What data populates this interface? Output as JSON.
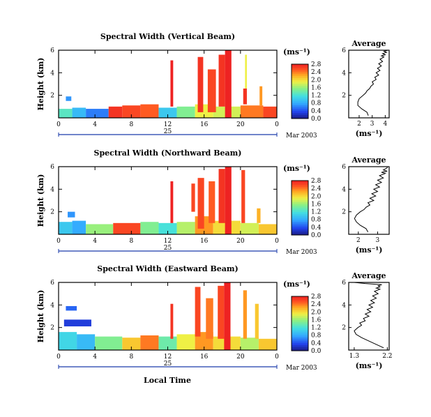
{
  "figure": {
    "xlabel": "Local Time"
  },
  "chart_data": [
    {
      "type": "heatmap",
      "title": "Spectral Width (Vertical Beam)",
      "ylabel": "Height (km)",
      "xticks": [
        "0",
        "4",
        "8",
        "12",
        "16",
        "20",
        "0"
      ],
      "xlim": [
        0,
        24
      ],
      "yticks": [
        "2",
        "4",
        "6"
      ],
      "ylim": [
        0,
        6
      ],
      "day_label": "25",
      "date_label": "Mar 2003",
      "colorbar": {
        "unit": "(ms⁻¹)",
        "ticks": [
          "0.0",
          "0.4",
          "0.8",
          "1.2",
          "1.6",
          "2.0",
          "2.4",
          "2.8"
        ],
        "range": [
          0,
          2.8
        ]
      },
      "cells": [
        {
          "t0": 0,
          "t1": 1.5,
          "h0": 0,
          "h1": 0.8,
          "v": 1.3
        },
        {
          "t0": 1.5,
          "t1": 3,
          "h0": 0,
          "h1": 0.9,
          "v": 0.9
        },
        {
          "t0": 3,
          "t1": 5.5,
          "h0": 0,
          "h1": 0.8,
          "v": 0.6
        },
        {
          "t0": 5.5,
          "t1": 7,
          "h0": 0,
          "h1": 1.0,
          "v": 2.7
        },
        {
          "t0": 7,
          "t1": 9,
          "h0": 0,
          "h1": 1.1,
          "v": 2.6
        },
        {
          "t0": 9,
          "t1": 11,
          "h0": 0,
          "h1": 1.2,
          "v": 2.5
        },
        {
          "t0": 11,
          "t1": 13,
          "h0": 0,
          "h1": 0.9,
          "v": 1.0
        },
        {
          "t0": 13,
          "t1": 15,
          "h0": 0,
          "h1": 1.0,
          "v": 1.5
        },
        {
          "t0": 15,
          "t1": 17,
          "h0": 0,
          "h1": 1.2,
          "v": 1.9
        },
        {
          "t0": 17,
          "t1": 20,
          "h0": 0,
          "h1": 1.0,
          "v": 1.8
        },
        {
          "t0": 20,
          "t1": 22.5,
          "h0": 0,
          "h1": 1.1,
          "v": 2.4
        },
        {
          "t0": 22.5,
          "t1": 24,
          "h0": 0,
          "h1": 1.0,
          "v": 2.6
        },
        {
          "t0": 0.8,
          "t1": 1.4,
          "h0": 1.5,
          "h1": 1.9,
          "v": 0.7
        },
        {
          "t0": 12.3,
          "t1": 12.6,
          "h0": 1.0,
          "h1": 5.1,
          "v": 2.8
        },
        {
          "t0": 15.3,
          "t1": 15.9,
          "h0": 0.5,
          "h1": 5.4,
          "v": 2.7
        },
        {
          "t0": 16.4,
          "t1": 17.3,
          "h0": 0.5,
          "h1": 4.3,
          "v": 2.6
        },
        {
          "t0": 17.6,
          "t1": 18.3,
          "h0": 1.0,
          "h1": 5.6,
          "v": 2.7
        },
        {
          "t0": 18.3,
          "t1": 19.0,
          "h0": 0.0,
          "h1": 6.0,
          "v": 2.8
        },
        {
          "t0": 20.5,
          "t1": 20.7,
          "h0": 2.6,
          "h1": 5.6,
          "v": 1.9
        },
        {
          "t0": 20.3,
          "t1": 20.7,
          "h0": 1.2,
          "h1": 2.6,
          "v": 2.7
        },
        {
          "t0": 22.1,
          "t1": 22.4,
          "h0": 1.1,
          "h1": 2.8,
          "v": 2.3
        }
      ],
      "average": {
        "title": "Average",
        "xunit": "(ms⁻¹)",
        "xticks": [
          "2",
          "3",
          "4"
        ],
        "xlim": [
          1.2,
          4.3
        ],
        "yticks": [
          "2",
          "4",
          "6"
        ],
        "ylim": [
          0,
          6
        ],
        "x": [
          2.7,
          2.6,
          2.2,
          1.9,
          1.9,
          2.0,
          2.3,
          2.5,
          2.6,
          2.8,
          2.9,
          3.1,
          3.0,
          3.3,
          3.2,
          3.5,
          3.3,
          3.6,
          3.4,
          3.7,
          3.5,
          3.8,
          3.6,
          3.9,
          3.7,
          4.0,
          3.8,
          4.1,
          3.9,
          4.2
        ],
        "y": [
          0.2,
          0.5,
          0.8,
          1.1,
          1.4,
          1.7,
          2.0,
          2.2,
          2.4,
          2.6,
          2.8,
          3.0,
          3.2,
          3.4,
          3.6,
          3.8,
          4.0,
          4.2,
          4.4,
          4.6,
          4.8,
          5.0,
          5.2,
          5.4,
          5.5,
          5.6,
          5.7,
          5.8,
          5.9,
          6.0
        ]
      }
    },
    {
      "type": "heatmap",
      "title": "Spectral Width (Northward Beam)",
      "ylabel": "Height (km)",
      "xticks": [
        "0",
        "4",
        "8",
        "12",
        "16",
        "20",
        "0"
      ],
      "xlim": [
        0,
        24
      ],
      "yticks": [
        "2",
        "4",
        "6"
      ],
      "ylim": [
        0,
        6
      ],
      "day_label": "25",
      "date_label": "Mar 2003",
      "colorbar": {
        "unit": "(ms⁻¹)",
        "ticks": [
          "0.0",
          "0.4",
          "0.8",
          "1.2",
          "1.6",
          "2.0",
          "2.4",
          "2.8"
        ],
        "range": [
          0,
          2.8
        ]
      },
      "cells": [
        {
          "t0": 0,
          "t1": 1.5,
          "h0": 0,
          "h1": 1.1,
          "v": 1.0
        },
        {
          "t0": 1.5,
          "t1": 3,
          "h0": 0,
          "h1": 1.2,
          "v": 0.8
        },
        {
          "t0": 3,
          "t1": 6,
          "h0": 0,
          "h1": 0.9,
          "v": 1.6
        },
        {
          "t0": 6,
          "t1": 9,
          "h0": 0,
          "h1": 1.0,
          "v": 2.6
        },
        {
          "t0": 9,
          "t1": 11,
          "h0": 0,
          "h1": 1.1,
          "v": 1.5
        },
        {
          "t0": 11,
          "t1": 13,
          "h0": 0,
          "h1": 1.0,
          "v": 1.2
        },
        {
          "t0": 13,
          "t1": 15,
          "h0": 0,
          "h1": 1.1,
          "v": 1.7
        },
        {
          "t0": 15,
          "t1": 17,
          "h0": 0,
          "h1": 1.6,
          "v": 2.3
        },
        {
          "t0": 17,
          "t1": 20,
          "h0": 0,
          "h1": 1.2,
          "v": 2.0
        },
        {
          "t0": 20,
          "t1": 22,
          "h0": 0,
          "h1": 1.0,
          "v": 1.8
        },
        {
          "t0": 22,
          "t1": 24,
          "h0": 0,
          "h1": 0.9,
          "v": 2.1
        },
        {
          "t0": 1.0,
          "t1": 1.8,
          "h0": 1.5,
          "h1": 2.0,
          "v": 0.7
        },
        {
          "t0": 12.3,
          "t1": 12.6,
          "h0": 1.0,
          "h1": 4.7,
          "v": 2.8
        },
        {
          "t0": 14.6,
          "t1": 15.0,
          "h0": 2.0,
          "h1": 4.5,
          "v": 2.6
        },
        {
          "t0": 15.3,
          "t1": 16.0,
          "h0": 0.5,
          "h1": 5.0,
          "v": 2.6
        },
        {
          "t0": 16.5,
          "t1": 17.2,
          "h0": 1.0,
          "h1": 4.7,
          "v": 2.5
        },
        {
          "t0": 17.6,
          "t1": 18.3,
          "h0": 1.0,
          "h1": 5.8,
          "v": 2.7
        },
        {
          "t0": 18.3,
          "t1": 19.0,
          "h0": 0.0,
          "h1": 6.0,
          "v": 2.8
        },
        {
          "t0": 20.1,
          "t1": 20.5,
          "h0": 1.0,
          "h1": 5.7,
          "v": 2.6
        },
        {
          "t0": 21.8,
          "t1": 22.2,
          "h0": 1.0,
          "h1": 2.3,
          "v": 2.2
        }
      ],
      "average": {
        "title": "Average",
        "xunit": "(ms⁻¹)",
        "xticks": [
          "2",
          "3"
        ],
        "xlim": [
          1.5,
          3.6
        ],
        "yticks": [
          "2",
          "4",
          "6"
        ],
        "ylim": [
          0,
          6
        ],
        "x": [
          2.5,
          2.4,
          2.1,
          1.9,
          1.8,
          1.9,
          2.1,
          2.3,
          2.4,
          2.6,
          2.5,
          2.8,
          2.6,
          2.9,
          2.7,
          3.0,
          2.8,
          3.1,
          2.9,
          3.2,
          3.0,
          3.3,
          3.1,
          3.4,
          3.2,
          3.5,
          3.3,
          3.4,
          3.5,
          3.5
        ],
        "y": [
          0.2,
          0.5,
          0.8,
          1.1,
          1.4,
          1.7,
          2.0,
          2.2,
          2.4,
          2.6,
          2.8,
          3.0,
          3.2,
          3.4,
          3.6,
          3.8,
          4.0,
          4.2,
          4.4,
          4.6,
          4.8,
          5.0,
          5.2,
          5.4,
          5.5,
          5.6,
          5.7,
          5.8,
          5.9,
          6.0
        ]
      }
    },
    {
      "type": "heatmap",
      "title": "Spectral Width (Eastward Beam)",
      "ylabel": "Height (km)",
      "xticks": [
        "0",
        "4",
        "8",
        "12",
        "16",
        "20",
        "0"
      ],
      "xlim": [
        0,
        24
      ],
      "yticks": [
        "2",
        "4",
        "6"
      ],
      "ylim": [
        0,
        6
      ],
      "day_label": "25",
      "date_label": "Mar 2003",
      "colorbar": {
        "unit": "(ms⁻¹)",
        "ticks": [
          "0.0",
          "0.4",
          "0.8",
          "1.2",
          "1.6",
          "2.0",
          "2.4",
          "2.8"
        ],
        "range": [
          0,
          2.8
        ]
      },
      "cells": [
        {
          "t0": 0,
          "t1": 2,
          "h0": 0,
          "h1": 1.6,
          "v": 1.1
        },
        {
          "t0": 2,
          "t1": 4,
          "h0": 0,
          "h1": 1.4,
          "v": 0.9
        },
        {
          "t0": 4,
          "t1": 7,
          "h0": 0,
          "h1": 1.2,
          "v": 1.5
        },
        {
          "t0": 7,
          "t1": 9,
          "h0": 0,
          "h1": 1.1,
          "v": 2.1
        },
        {
          "t0": 9,
          "t1": 11,
          "h0": 0,
          "h1": 1.3,
          "v": 2.4
        },
        {
          "t0": 11,
          "t1": 13,
          "h0": 0,
          "h1": 1.2,
          "v": 1.4
        },
        {
          "t0": 13,
          "t1": 15,
          "h0": 0,
          "h1": 1.4,
          "v": 1.9
        },
        {
          "t0": 15,
          "t1": 17,
          "h0": 0,
          "h1": 1.6,
          "v": 2.3
        },
        {
          "t0": 17,
          "t1": 20,
          "h0": 0,
          "h1": 1.2,
          "v": 2.0
        },
        {
          "t0": 20,
          "t1": 22,
          "h0": 0,
          "h1": 1.1,
          "v": 1.7
        },
        {
          "t0": 22,
          "t1": 24,
          "h0": 0,
          "h1": 1.0,
          "v": 2.1
        },
        {
          "t0": 0.6,
          "t1": 3.6,
          "h0": 2.1,
          "h1": 2.7,
          "v": 0.3
        },
        {
          "t0": 0.8,
          "t1": 2.0,
          "h0": 3.5,
          "h1": 3.9,
          "v": 0.5
        },
        {
          "t0": 12.3,
          "t1": 12.6,
          "h0": 1.0,
          "h1": 4.1,
          "v": 2.7
        },
        {
          "t0": 15.0,
          "t1": 15.6,
          "h0": 1.2,
          "h1": 5.6,
          "v": 2.6
        },
        {
          "t0": 16.2,
          "t1": 17.0,
          "h0": 1.0,
          "h1": 4.6,
          "v": 2.4
        },
        {
          "t0": 17.5,
          "t1": 18.2,
          "h0": 1.0,
          "h1": 5.7,
          "v": 2.6
        },
        {
          "t0": 18.2,
          "t1": 18.9,
          "h0": 0.0,
          "h1": 6.0,
          "v": 2.8
        },
        {
          "t0": 20.3,
          "t1": 20.7,
          "h0": 1.0,
          "h1": 5.3,
          "v": 2.3
        },
        {
          "t0": 21.6,
          "t1": 22.0,
          "h0": 1.0,
          "h1": 4.1,
          "v": 2.1
        }
      ],
      "average": {
        "title": "Average",
        "xunit": "(ms⁻¹)",
        "xticks": [
          "1.3",
          "2.2"
        ],
        "xlim": [
          1.15,
          2.25
        ],
        "yticks": [
          "2",
          "4",
          "6"
        ],
        "ylim": [
          0,
          6
        ],
        "x": [
          2.1,
          1.9,
          1.7,
          1.5,
          1.35,
          1.3,
          1.4,
          1.5,
          1.45,
          1.6,
          1.55,
          1.7,
          1.6,
          1.75,
          1.65,
          1.8,
          1.7,
          1.85,
          1.75,
          1.9,
          1.8,
          1.95,
          1.85,
          2.0,
          1.9,
          2.0,
          1.95,
          2.05,
          1.6,
          1.3
        ],
        "y": [
          0.2,
          0.5,
          0.8,
          1.1,
          1.4,
          1.7,
          2.0,
          2.2,
          2.4,
          2.6,
          2.8,
          3.0,
          3.2,
          3.4,
          3.6,
          3.8,
          4.0,
          4.2,
          4.4,
          4.6,
          4.8,
          5.0,
          5.2,
          5.4,
          5.5,
          5.6,
          5.7,
          5.8,
          5.9,
          6.0
        ]
      }
    }
  ]
}
